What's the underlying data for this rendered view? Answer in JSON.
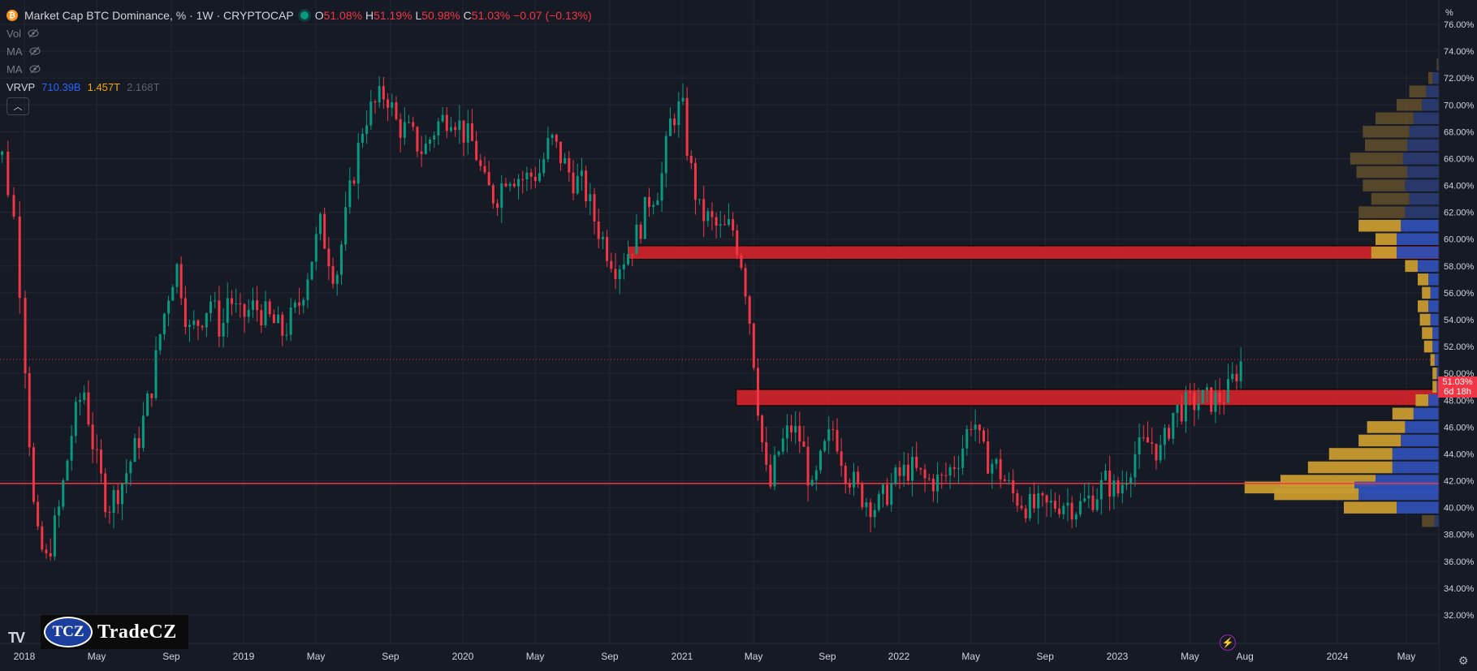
{
  "header": {
    "symbol_title": "Market Cap BTC Dominance, % · 1W · CRYPTOCAP",
    "ohlc": {
      "o_label": "O",
      "o_value": "51.08%",
      "h_label": "H",
      "h_value": "51.19%",
      "l_label": "L",
      "l_value": "50.98%",
      "c_label": "C",
      "c_value": "51.03%",
      "change": "−0.07 (−0.13%)"
    },
    "indicators": [
      {
        "label": "Vol",
        "icon": "eye-off-icon"
      },
      {
        "label": "MA",
        "icon": "eye-off-icon"
      },
      {
        "label": "MA",
        "icon": "eye-off-icon"
      }
    ],
    "vrvp": {
      "label": "VRVP",
      "up": "710.39B",
      "down": "1.457T",
      "total": "2.168T"
    },
    "collapse_icon": "chevron-up-icon"
  },
  "colors": {
    "background": "#161a25",
    "up": "#089981",
    "down": "#f23645",
    "zone": "#d0222a",
    "vp_up": "#2e4fb3",
    "vp_down": "#c89b2e",
    "vp_up_outside": "#2a3a6e",
    "vp_down_outside": "#5a4a2a",
    "hline": "#f23645"
  },
  "axes": {
    "unit_label": "%",
    "y_ticks": [
      "76.00%",
      "74.00%",
      "72.00%",
      "70.00%",
      "68.00%",
      "66.00%",
      "64.00%",
      "62.00%",
      "60.00%",
      "58.00%",
      "56.00%",
      "54.00%",
      "52.00%",
      "50.00%",
      "48.00%",
      "46.00%",
      "44.00%",
      "42.00%",
      "40.00%",
      "38.00%",
      "36.00%",
      "34.00%",
      "32.00%"
    ],
    "x_ticks": [
      "2018",
      "May",
      "Sep",
      "2019",
      "May",
      "Sep",
      "2020",
      "May",
      "Sep",
      "2021",
      "May",
      "Sep",
      "2022",
      "May",
      "Sep",
      "2023",
      "May",
      "Aug",
      "2024",
      "May"
    ]
  },
  "price_tag": {
    "value": "51.03%",
    "countdown": "6d 18h"
  },
  "branding": {
    "tv_logo": "TV",
    "badge": "TCZ",
    "name": "TradeCZ"
  },
  "chart_data": {
    "type": "candlestick",
    "ylim": [
      31.5,
      77
    ],
    "current_price": 51.03,
    "horizontal_line": 41.8,
    "zones": [
      {
        "from": 58.5,
        "to": 59.5,
        "start": "2020-10"
      },
      {
        "from": 47.6,
        "to": 48.8,
        "start": "2021-04"
      }
    ],
    "weekly_close_path": [
      [
        2017.85,
        64
      ],
      [
        2017.92,
        67
      ],
      [
        2017.97,
        61
      ],
      [
        2018.02,
        46
      ],
      [
        2018.05,
        38
      ],
      [
        2018.1,
        36
      ],
      [
        2018.16,
        40
      ],
      [
        2018.22,
        46
      ],
      [
        2018.27,
        49
      ],
      [
        2018.32,
        44
      ],
      [
        2018.38,
        40
      ],
      [
        2018.45,
        42
      ],
      [
        2018.52,
        45
      ],
      [
        2018.58,
        49
      ],
      [
        2018.62,
        53
      ],
      [
        2018.67,
        57
      ],
      [
        2018.7,
        58
      ],
      [
        2018.75,
        53
      ],
      [
        2018.8,
        54
      ],
      [
        2018.85,
        55.5
      ],
      [
        2018.9,
        53
      ],
      [
        2018.93,
        56
      ],
      [
        2018.98,
        54
      ],
      [
        2019.05,
        55
      ],
      [
        2019.12,
        54
      ],
      [
        2019.18,
        53
      ],
      [
        2019.25,
        55
      ],
      [
        2019.3,
        58
      ],
      [
        2019.35,
        61
      ],
      [
        2019.42,
        57
      ],
      [
        2019.48,
        63
      ],
      [
        2019.55,
        69
      ],
      [
        2019.6,
        70
      ],
      [
        2019.65,
        71
      ],
      [
        2019.7,
        68.5
      ],
      [
        2019.75,
        68
      ],
      [
        2019.82,
        66.5
      ],
      [
        2019.88,
        68.5
      ],
      [
        2019.95,
        69.5
      ],
      [
        2020.0,
        68
      ],
      [
        2020.05,
        67
      ],
      [
        2020.1,
        64
      ],
      [
        2020.15,
        63
      ],
      [
        2020.2,
        65
      ],
      [
        2020.28,
        64.5
      ],
      [
        2020.35,
        65
      ],
      [
        2020.4,
        67.5
      ],
      [
        2020.45,
        66
      ],
      [
        2020.5,
        64.5
      ],
      [
        2020.55,
        64
      ],
      [
        2020.6,
        61.5
      ],
      [
        2020.65,
        59.5
      ],
      [
        2020.7,
        58
      ],
      [
        2020.75,
        59
      ],
      [
        2020.8,
        60.5
      ],
      [
        2020.85,
        63
      ],
      [
        2020.9,
        64
      ],
      [
        2020.95,
        69
      ],
      [
        2021.0,
        70
      ],
      [
        2021.03,
        66
      ],
      [
        2021.08,
        62
      ],
      [
        2021.12,
        61.5
      ],
      [
        2021.18,
        60.5
      ],
      [
        2021.23,
        61
      ],
      [
        2021.28,
        58
      ],
      [
        2021.32,
        53
      ],
      [
        2021.36,
        46
      ],
      [
        2021.4,
        41
      ],
      [
        2021.44,
        44
      ],
      [
        2021.5,
        46
      ],
      [
        2021.55,
        45
      ],
      [
        2021.6,
        41
      ],
      [
        2021.65,
        44
      ],
      [
        2021.7,
        46
      ],
      [
        2021.75,
        43
      ],
      [
        2021.82,
        41
      ],
      [
        2021.9,
        40
      ],
      [
        2021.98,
        42
      ],
      [
        2022.05,
        43
      ],
      [
        2022.12,
        42
      ],
      [
        2022.2,
        42
      ],
      [
        2022.28,
        44
      ],
      [
        2022.34,
        47
      ],
      [
        2022.38,
        44
      ],
      [
        2022.45,
        43
      ],
      [
        2022.52,
        41
      ],
      [
        2022.6,
        40
      ],
      [
        2022.68,
        40
      ],
      [
        2022.75,
        40.5
      ],
      [
        2022.82,
        40
      ],
      [
        2022.9,
        41
      ],
      [
        2022.95,
        42
      ],
      [
        2023.0,
        41
      ],
      [
        2023.08,
        44
      ],
      [
        2023.15,
        45
      ],
      [
        2023.2,
        44
      ],
      [
        2023.25,
        47
      ],
      [
        2023.3,
        47.5
      ],
      [
        2023.38,
        48
      ],
      [
        2023.45,
        48
      ],
      [
        2023.5,
        48.5
      ],
      [
        2023.55,
        50.5
      ],
      [
        2023.57,
        51
      ]
    ],
    "volume_profile": [
      {
        "price": 73,
        "up": 0.005,
        "down": 0.005,
        "in_range": false
      },
      {
        "price": 72,
        "up": 0.03,
        "down": 0.02,
        "in_range": false
      },
      {
        "price": 71,
        "up": 0.06,
        "down": 0.08,
        "in_range": false
      },
      {
        "price": 70,
        "up": 0.08,
        "down": 0.12,
        "in_range": false
      },
      {
        "price": 69,
        "up": 0.12,
        "down": 0.18,
        "in_range": false
      },
      {
        "price": 68,
        "up": 0.14,
        "down": 0.22,
        "in_range": false
      },
      {
        "price": 67,
        "up": 0.15,
        "down": 0.2,
        "in_range": false
      },
      {
        "price": 66,
        "up": 0.17,
        "down": 0.25,
        "in_range": false
      },
      {
        "price": 65,
        "up": 0.15,
        "down": 0.24,
        "in_range": false
      },
      {
        "price": 64,
        "up": 0.16,
        "down": 0.2,
        "in_range": false
      },
      {
        "price": 63,
        "up": 0.14,
        "down": 0.18,
        "in_range": false
      },
      {
        "price": 62,
        "up": 0.16,
        "down": 0.22,
        "in_range": false
      },
      {
        "price": 61,
        "up": 0.18,
        "down": 0.2,
        "in_range": true
      },
      {
        "price": 60,
        "up": 0.2,
        "down": 0.1,
        "in_range": true
      },
      {
        "price": 59,
        "up": 0.2,
        "down": 0.12,
        "in_range": true
      },
      {
        "price": 58,
        "up": 0.1,
        "down": 0.06,
        "in_range": true
      },
      {
        "price": 57,
        "up": 0.05,
        "down": 0.05,
        "in_range": true
      },
      {
        "price": 56,
        "up": 0.04,
        "down": 0.04,
        "in_range": true
      },
      {
        "price": 55,
        "up": 0.05,
        "down": 0.05,
        "in_range": true
      },
      {
        "price": 54,
        "up": 0.04,
        "down": 0.05,
        "in_range": true
      },
      {
        "price": 53,
        "up": 0.03,
        "down": 0.05,
        "in_range": true
      },
      {
        "price": 52,
        "up": 0.03,
        "down": 0.04,
        "in_range": true
      },
      {
        "price": 51,
        "up": 0.02,
        "down": 0.02,
        "in_range": true
      },
      {
        "price": 50,
        "up": 0.01,
        "down": 0.02,
        "in_range": true
      },
      {
        "price": 49,
        "up": 0.01,
        "down": 0.02,
        "in_range": true
      },
      {
        "price": 48,
        "up": 0.05,
        "down": 0.06,
        "in_range": true
      },
      {
        "price": 47,
        "up": 0.12,
        "down": 0.1,
        "in_range": true
      },
      {
        "price": 46,
        "up": 0.16,
        "down": 0.18,
        "in_range": true
      },
      {
        "price": 45,
        "up": 0.18,
        "down": 0.2,
        "in_range": true
      },
      {
        "price": 44,
        "up": 0.22,
        "down": 0.3,
        "in_range": true
      },
      {
        "price": 43,
        "up": 0.22,
        "down": 0.4,
        "in_range": true
      },
      {
        "price": 42,
        "up": 0.3,
        "down": 0.45,
        "in_range": true
      },
      {
        "price": 41.5,
        "up": 0.4,
        "down": 0.52,
        "in_range": true
      },
      {
        "price": 41,
        "up": 0.38,
        "down": 0.4,
        "in_range": true
      },
      {
        "price": 40,
        "up": 0.2,
        "down": 0.25,
        "in_range": true
      },
      {
        "price": 39,
        "up": 0.02,
        "down": 0.06,
        "in_range": false
      }
    ]
  }
}
